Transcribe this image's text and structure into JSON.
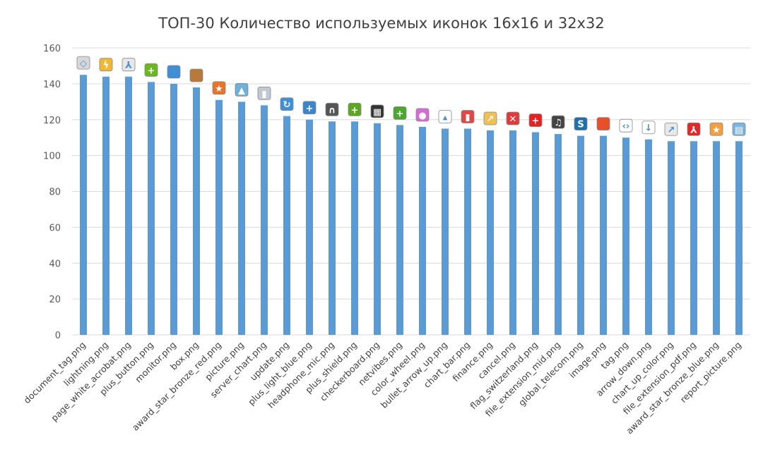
{
  "chart_data": {
    "type": "bar",
    "title": "ТОП-30 Количество используемых иконок 16х16 и 32х32",
    "xlabel": "",
    "ylabel": "",
    "ylim": [
      0,
      160
    ],
    "yticks": [
      0,
      20,
      40,
      60,
      80,
      100,
      120,
      140,
      160
    ],
    "grid": true,
    "legend": "none",
    "bar_color": "#5B9BD5",
    "categories": [
      "document_tag.png",
      "lightning.png",
      "page_white_acrobat.png",
      "plus_button.png",
      "monitor.png",
      "box.png",
      "award_star_bronze_red.png",
      "picture.png",
      "server_chart.png",
      "update.png",
      "plus_light_blue.png",
      "headphone_mic.png",
      "plus_shield.png",
      "checkerboard.png",
      "netvibes.png",
      "color_wheel.png",
      "bullet_arrow_up.png",
      "chart_bar.png",
      "finance.png",
      "cancel.png",
      "flag_switzerland.png",
      "file_extension_mid.png",
      "global_telecom.png",
      "image.png",
      "tag.png",
      "arrow_down.png",
      "chart_up_color.png",
      "file_extension_pdf.png",
      "award_star_bronze_blue.png",
      "report_picture.png"
    ],
    "values": [
      145,
      144,
      144,
      141,
      140,
      138,
      131,
      130,
      128,
      122,
      120,
      119,
      119,
      118,
      117,
      116,
      115,
      115,
      114,
      114,
      113,
      112,
      111,
      111,
      110,
      109,
      108,
      108,
      108,
      108
    ],
    "icons": [
      {
        "name": "tag-icon",
        "color": "#d8d8d8",
        "glyph": "◇"
      },
      {
        "name": "lightning-icon",
        "color": "#f2b632",
        "glyph": "ϟ"
      },
      {
        "name": "pdf-page-icon",
        "color": "#e8e8e8",
        "glyph": "⅄"
      },
      {
        "name": "plus-button-icon",
        "color": "#6ab820",
        "glyph": "+"
      },
      {
        "name": "monitor-icon",
        "color": "#3d8fd6",
        "glyph": ""
      },
      {
        "name": "box-icon",
        "color": "#b87a3a",
        "glyph": ""
      },
      {
        "name": "award-star-red-icon",
        "color": "#e8742a",
        "glyph": "★"
      },
      {
        "name": "picture-icon",
        "color": "#6cb0e0",
        "glyph": "▲"
      },
      {
        "name": "server-chart-icon",
        "color": "#c0c8d4",
        "glyph": "▮"
      },
      {
        "name": "update-icon",
        "color": "#3f8fd8",
        "glyph": "↻"
      },
      {
        "name": "plus-light-blue-icon",
        "color": "#3a85cc",
        "glyph": "+"
      },
      {
        "name": "headphone-mic-icon",
        "color": "#555555",
        "glyph": "∩"
      },
      {
        "name": "plus-shield-icon",
        "color": "#5aa81e",
        "glyph": "+"
      },
      {
        "name": "checkerboard-icon",
        "color": "#333333",
        "glyph": "▦"
      },
      {
        "name": "netvibes-icon",
        "color": "#4aa82a",
        "glyph": "+"
      },
      {
        "name": "color-wheel-icon",
        "color": "#d86ad8",
        "glyph": "●"
      },
      {
        "name": "bullet-arrow-up-icon",
        "color": "#ffffff",
        "glyph": "▴"
      },
      {
        "name": "chart-bar-icon",
        "color": "#e04848",
        "glyph": "▮"
      },
      {
        "name": "finance-icon",
        "color": "#f0c050",
        "glyph": "↗"
      },
      {
        "name": "cancel-icon",
        "color": "#e03a3a",
        "glyph": "✕"
      },
      {
        "name": "flag-switzerland-icon",
        "color": "#e82020",
        "glyph": "+"
      },
      {
        "name": "music-file-icon",
        "color": "#444444",
        "glyph": "♫"
      },
      {
        "name": "global-telecom-icon",
        "color": "#1f6fb0",
        "glyph": "S"
      },
      {
        "name": "image-icon",
        "color": "#e8502a",
        "glyph": ""
      },
      {
        "name": "tag-code-icon",
        "color": "#ffffff",
        "glyph": "‹›"
      },
      {
        "name": "arrow-down-icon",
        "color": "#ffffff",
        "glyph": "↓"
      },
      {
        "name": "chart-up-color-icon",
        "color": "#e8e8e8",
        "glyph": "↗"
      },
      {
        "name": "pdf-file-icon",
        "color": "#e02828",
        "glyph": "⅄"
      },
      {
        "name": "award-star-blue-icon",
        "color": "#f0a040",
        "glyph": "★"
      },
      {
        "name": "report-picture-icon",
        "color": "#7ab4e0",
        "glyph": "▤"
      }
    ]
  }
}
